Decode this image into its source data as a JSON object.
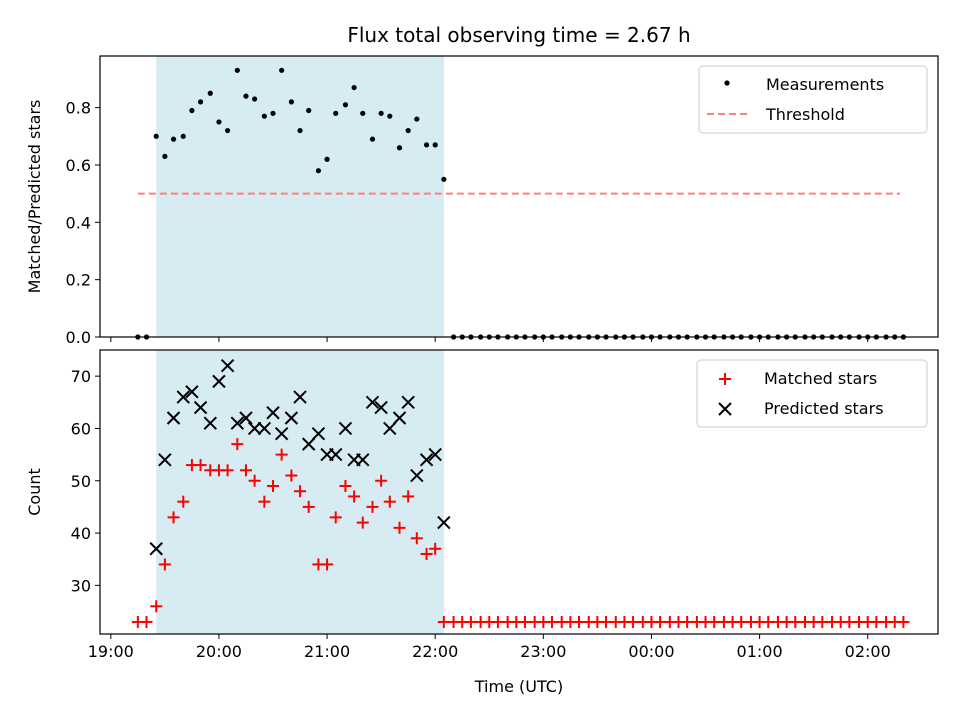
{
  "title": "Flux total observing time = 2.67 h",
  "colors": {
    "span_fill": "#add8e6",
    "measurement": "#000000",
    "threshold": "#ff7f7f",
    "matched": "#ff0000",
    "predicted": "#000000"
  },
  "chart_data": [
    {
      "type": "scatter",
      "panel": "top",
      "ylabel": "Matched/Predicted stars",
      "xlim": [
        18.9,
        26.65
      ],
      "ylim": [
        0,
        0.98
      ],
      "yticks": [
        0.0,
        0.2,
        0.4,
        0.6,
        0.8
      ],
      "highlight_span": [
        19.42,
        22.08
      ],
      "legend": {
        "placement": "top-right",
        "entries": [
          "Measurements",
          "Threshold"
        ]
      },
      "threshold": {
        "name": "Threshold",
        "y": 0.5,
        "x_range": [
          19.25,
          26.3
        ]
      },
      "series": [
        {
          "name": "Measurements",
          "x": [
            19.25,
            19.33,
            19.42,
            19.5,
            19.58,
            19.67,
            19.75,
            19.83,
            19.92,
            20.0,
            20.08,
            20.17,
            20.25,
            20.33,
            20.42,
            20.5,
            20.58,
            20.67,
            20.75,
            20.83,
            20.92,
            21.0,
            21.08,
            21.17,
            21.25,
            21.33,
            21.42,
            21.5,
            21.58,
            21.67,
            21.75,
            21.83,
            21.92,
            22.0,
            22.08,
            22.17,
            22.25,
            22.33,
            22.42,
            22.5,
            22.58,
            22.67,
            22.75,
            22.83,
            22.92,
            23.0,
            23.08,
            23.17,
            23.25,
            23.33,
            23.42,
            23.5,
            23.58,
            23.67,
            23.75,
            23.83,
            23.92,
            24.0,
            24.08,
            24.17,
            24.25,
            24.33,
            24.42,
            24.5,
            24.58,
            24.67,
            24.75,
            24.83,
            24.92,
            25.0,
            25.08,
            25.17,
            25.25,
            25.33,
            25.42,
            25.5,
            25.58,
            25.67,
            25.75,
            25.83,
            25.92,
            26.0,
            26.08,
            26.17,
            26.25,
            26.33
          ],
          "y": [
            0,
            0,
            0.7,
            0.63,
            0.69,
            0.7,
            0.79,
            0.82,
            0.85,
            0.75,
            0.72,
            0.93,
            0.84,
            0.83,
            0.77,
            0.78,
            0.93,
            0.82,
            0.72,
            0.79,
            0.58,
            0.62,
            0.78,
            0.81,
            0.87,
            0.78,
            0.69,
            0.78,
            0.77,
            0.66,
            0.72,
            0.76,
            0.67,
            0.67,
            0.55,
            0,
            0,
            0,
            0,
            0,
            0,
            0,
            0,
            0,
            0,
            0,
            0,
            0,
            0,
            0,
            0,
            0,
            0,
            0,
            0,
            0,
            0,
            0,
            0,
            0,
            0,
            0,
            0,
            0,
            0,
            0,
            0,
            0,
            0,
            0,
            0,
            0,
            0,
            0,
            0,
            0,
            0,
            0,
            0,
            0,
            0,
            0,
            0,
            0,
            0,
            0
          ]
        }
      ]
    },
    {
      "type": "scatter",
      "panel": "bottom",
      "xlabel": "Time (UTC)",
      "ylabel": "Count",
      "xlim": [
        18.9,
        26.65
      ],
      "ylim": [
        20.7,
        75
      ],
      "yticks": [
        30,
        40,
        50,
        60,
        70
      ],
      "xticks": [
        19,
        20,
        21,
        22,
        23,
        24,
        25,
        26
      ],
      "xtick_labels": [
        "19:00",
        "20:00",
        "21:00",
        "22:00",
        "23:00",
        "00:00",
        "01:00",
        "02:00"
      ],
      "highlight_span": [
        19.42,
        22.08
      ],
      "legend": {
        "placement": "top-right",
        "entries": [
          "Matched stars",
          "Predicted stars"
        ]
      },
      "series": [
        {
          "name": "Matched stars",
          "marker": "+",
          "x": [
            19.25,
            19.33,
            19.42,
            19.5,
            19.58,
            19.67,
            19.75,
            19.83,
            19.92,
            20.0,
            20.08,
            20.17,
            20.25,
            20.33,
            20.42,
            20.5,
            20.58,
            20.67,
            20.75,
            20.83,
            20.92,
            21.0,
            21.08,
            21.17,
            21.25,
            21.33,
            21.42,
            21.5,
            21.58,
            21.67,
            21.75,
            21.83,
            21.92,
            22.0,
            22.08,
            22.17,
            22.25,
            22.33,
            22.42,
            22.5,
            22.58,
            22.67,
            22.75,
            22.83,
            22.92,
            23.0,
            23.08,
            23.17,
            23.25,
            23.33,
            23.42,
            23.5,
            23.58,
            23.67,
            23.75,
            23.83,
            23.92,
            24.0,
            24.08,
            24.17,
            24.25,
            24.33,
            24.42,
            24.5,
            24.58,
            24.67,
            24.75,
            24.83,
            24.92,
            25.0,
            25.08,
            25.17,
            25.25,
            25.33,
            25.42,
            25.5,
            25.58,
            25.67,
            25.75,
            25.83,
            25.92,
            26.0,
            26.08,
            26.17,
            26.25,
            26.33
          ],
          "y": [
            23,
            23,
            26,
            34,
            43,
            46,
            53,
            53,
            52,
            52,
            52,
            57,
            52,
            50,
            46,
            49,
            55,
            51,
            48,
            45,
            34,
            34,
            43,
            49,
            47,
            42,
            45,
            50,
            46,
            41,
            47,
            39,
            36,
            37,
            23,
            23,
            23,
            23,
            23,
            23,
            23,
            23,
            23,
            23,
            23,
            23,
            23,
            23,
            23,
            23,
            23,
            23,
            23,
            23,
            23,
            23,
            23,
            23,
            23,
            23,
            23,
            23,
            23,
            23,
            23,
            23,
            23,
            23,
            23,
            23,
            23,
            23,
            23,
            23,
            23,
            23,
            23,
            23,
            23,
            23,
            23,
            23,
            23,
            23,
            23,
            23
          ]
        },
        {
          "name": "Predicted stars",
          "marker": "x",
          "x": [
            19.42,
            19.5,
            19.58,
            19.67,
            19.75,
            19.83,
            19.92,
            20.0,
            20.08,
            20.17,
            20.25,
            20.33,
            20.42,
            20.5,
            20.58,
            20.67,
            20.75,
            20.83,
            20.92,
            21.0,
            21.08,
            21.17,
            21.25,
            21.33,
            21.42,
            21.5,
            21.58,
            21.67,
            21.75,
            21.83,
            21.92,
            22.0,
            22.08
          ],
          "y": [
            37,
            54,
            62,
            66,
            67,
            64,
            61,
            69,
            72,
            61,
            62,
            60,
            60,
            63,
            59,
            62,
            66,
            57,
            59,
            55,
            55,
            60,
            54,
            54,
            65,
            64,
            60,
            62,
            65,
            51,
            54,
            55,
            42
          ]
        }
      ]
    }
  ]
}
